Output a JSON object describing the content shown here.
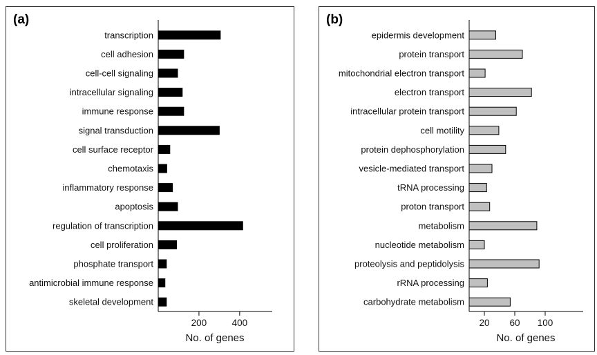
{
  "chart_data": [
    {
      "type": "bar",
      "orientation": "horizontal",
      "panel_label": "(a)",
      "categories": [
        "transcription",
        "cell adhesion",
        "cell-cell signaling",
        "intracellular signaling",
        "immune response",
        "signal transduction",
        "cell surface receptor",
        "chemotaxis",
        "inflammatory response",
        "apoptosis",
        "regulation of transcription",
        "cell proliferation",
        "phosphate transport",
        "antimicrobial immune response",
        "skeletal development"
      ],
      "values": [
        305,
        125,
        95,
        118,
        125,
        300,
        57,
        42,
        70,
        95,
        415,
        90,
        40,
        33,
        40
      ],
      "xlabel": "No. of genes",
      "ylabel": "",
      "xlim": [
        0,
        560
      ],
      "xticks": [
        200,
        400
      ],
      "bar_color": "#000000"
    },
    {
      "type": "bar",
      "orientation": "horizontal",
      "panel_label": "(b)",
      "categories": [
        "epidermis development",
        "protein transport",
        "mitochondrial electron transport",
        "electron transport",
        "intracellular protein transport",
        "cell motility",
        "protein dephosphorylation",
        "vesicle-mediated transport",
        "tRNA processing",
        "proton transport",
        "metabolism",
        "nucleotide metabolism",
        "proteolysis and peptidolysis",
        "rRNA processing",
        "carbohydrate metabolism"
      ],
      "values": [
        35,
        70,
        21,
        82,
        62,
        39,
        48,
        30,
        23,
        27,
        89,
        20,
        92,
        24,
        54
      ],
      "xlabel": "No. of genes",
      "ylabel": "",
      "xlim": [
        0,
        150
      ],
      "xticks": [
        20,
        60,
        100
      ],
      "bar_color": "#c0c0c0"
    }
  ]
}
